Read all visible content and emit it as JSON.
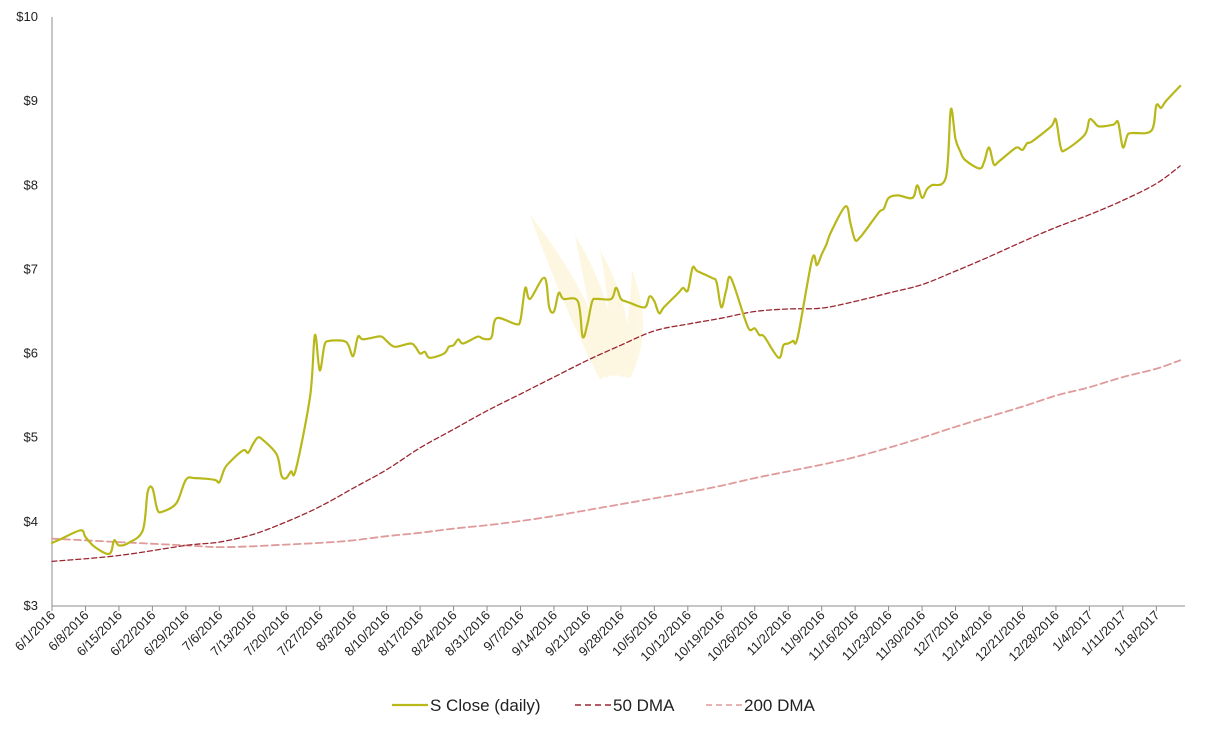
{
  "chart_data": {
    "type": "line",
    "title": "",
    "xlabel": "",
    "ylabel": "",
    "ylim": [
      3,
      10
    ],
    "yticks": [
      3,
      4,
      5,
      6,
      7,
      8,
      9,
      10
    ],
    "ytick_labels": [
      "$3",
      "$4",
      "$5",
      "$6",
      "$7",
      "$8",
      "$9",
      "$10"
    ],
    "x_start": "2016-06-01",
    "x_end": "2017-01-24",
    "xtick_labels": [
      "6/1/2016",
      "6/8/2016",
      "6/15/2016",
      "6/22/2016",
      "6/29/2016",
      "7/6/2016",
      "7/13/2016",
      "7/20/2016",
      "7/27/2016",
      "8/3/2016",
      "8/10/2016",
      "8/17/2016",
      "8/24/2016",
      "8/31/2016",
      "9/7/2016",
      "9/14/2016",
      "9/21/2016",
      "9/28/2016",
      "10/5/2016",
      "10/12/2016",
      "10/19/2016",
      "10/26/2016",
      "11/2/2016",
      "11/9/2016",
      "11/16/2016",
      "11/23/2016",
      "11/30/2016",
      "12/7/2016",
      "12/14/2016",
      "12/21/2016",
      "12/28/2016",
      "1/4/2017",
      "1/11/2017",
      "1/18/2017"
    ],
    "legend_position": "bottom",
    "grid": false,
    "series": [
      {
        "name": "S Close (daily)",
        "color": "#b8b81a",
        "style": "solid",
        "points": [
          [
            "2016-06-01",
            3.75
          ],
          [
            "2016-06-03",
            3.8
          ],
          [
            "2016-06-07",
            3.9
          ],
          [
            "2016-06-08",
            3.82
          ],
          [
            "2016-06-10",
            3.7
          ],
          [
            "2016-06-13",
            3.62
          ],
          [
            "2016-06-14",
            3.78
          ],
          [
            "2016-06-15",
            3.72
          ],
          [
            "2016-06-17",
            3.75
          ],
          [
            "2016-06-20",
            3.9
          ],
          [
            "2016-06-21",
            4.35
          ],
          [
            "2016-06-22",
            4.4
          ],
          [
            "2016-06-23",
            4.15
          ],
          [
            "2016-06-24",
            4.12
          ],
          [
            "2016-06-27",
            4.22
          ],
          [
            "2016-06-29",
            4.5
          ],
          [
            "2016-07-01",
            4.52
          ],
          [
            "2016-07-05",
            4.5
          ],
          [
            "2016-07-06",
            4.47
          ],
          [
            "2016-07-07",
            4.62
          ],
          [
            "2016-07-08",
            4.7
          ],
          [
            "2016-07-11",
            4.85
          ],
          [
            "2016-07-12",
            4.82
          ],
          [
            "2016-07-13",
            4.92
          ],
          [
            "2016-07-14",
            5.0
          ],
          [
            "2016-07-15",
            4.98
          ],
          [
            "2016-07-18",
            4.8
          ],
          [
            "2016-07-19",
            4.55
          ],
          [
            "2016-07-20",
            4.52
          ],
          [
            "2016-07-21",
            4.6
          ],
          [
            "2016-07-22",
            4.62
          ],
          [
            "2016-07-25",
            5.5
          ],
          [
            "2016-07-26",
            6.22
          ],
          [
            "2016-07-27",
            5.8
          ],
          [
            "2016-07-28",
            6.1
          ],
          [
            "2016-07-29",
            6.15
          ],
          [
            "2016-08-01",
            6.15
          ],
          [
            "2016-08-02",
            6.1
          ],
          [
            "2016-08-03",
            5.97
          ],
          [
            "2016-08-04",
            6.2
          ],
          [
            "2016-08-05",
            6.17
          ],
          [
            "2016-08-08",
            6.2
          ],
          [
            "2016-08-09",
            6.2
          ],
          [
            "2016-08-10",
            6.15
          ],
          [
            "2016-08-11",
            6.1
          ],
          [
            "2016-08-12",
            6.08
          ],
          [
            "2016-08-15",
            6.12
          ],
          [
            "2016-08-16",
            6.08
          ],
          [
            "2016-08-17",
            6.0
          ],
          [
            "2016-08-18",
            6.02
          ],
          [
            "2016-08-19",
            5.95
          ],
          [
            "2016-08-22",
            6.0
          ],
          [
            "2016-08-23",
            6.08
          ],
          [
            "2016-08-24",
            6.1
          ],
          [
            "2016-08-25",
            6.17
          ],
          [
            "2016-08-26",
            6.12
          ],
          [
            "2016-08-29",
            6.2
          ],
          [
            "2016-08-30",
            6.18
          ],
          [
            "2016-08-31",
            6.17
          ],
          [
            "2016-09-01",
            6.2
          ],
          [
            "2016-09-02",
            6.42
          ],
          [
            "2016-09-06",
            6.35
          ],
          [
            "2016-09-07",
            6.4
          ],
          [
            "2016-09-08",
            6.78
          ],
          [
            "2016-09-09",
            6.65
          ],
          [
            "2016-09-12",
            6.9
          ],
          [
            "2016-09-13",
            6.55
          ],
          [
            "2016-09-14",
            6.5
          ],
          [
            "2016-09-15",
            6.72
          ],
          [
            "2016-09-16",
            6.65
          ],
          [
            "2016-09-19",
            6.62
          ],
          [
            "2016-09-20",
            6.2
          ],
          [
            "2016-09-21",
            6.35
          ],
          [
            "2016-09-22",
            6.62
          ],
          [
            "2016-09-23",
            6.65
          ],
          [
            "2016-09-26",
            6.65
          ],
          [
            "2016-09-27",
            6.78
          ],
          [
            "2016-09-28",
            6.65
          ],
          [
            "2016-09-29",
            6.62
          ],
          [
            "2016-09-30",
            6.6
          ],
          [
            "2016-10-03",
            6.55
          ],
          [
            "2016-10-04",
            6.68
          ],
          [
            "2016-10-05",
            6.62
          ],
          [
            "2016-10-06",
            6.48
          ],
          [
            "2016-10-07",
            6.55
          ],
          [
            "2016-10-10",
            6.72
          ],
          [
            "2016-10-11",
            6.78
          ],
          [
            "2016-10-12",
            6.75
          ],
          [
            "2016-10-13",
            7.02
          ],
          [
            "2016-10-14",
            6.98
          ],
          [
            "2016-10-17",
            6.9
          ],
          [
            "2016-10-18",
            6.85
          ],
          [
            "2016-10-19",
            6.55
          ],
          [
            "2016-10-20",
            6.75
          ],
          [
            "2016-10-21",
            6.9
          ],
          [
            "2016-10-24",
            6.4
          ],
          [
            "2016-10-25",
            6.28
          ],
          [
            "2016-10-26",
            6.3
          ],
          [
            "2016-10-27",
            6.22
          ],
          [
            "2016-10-28",
            6.2
          ],
          [
            "2016-10-31",
            5.95
          ],
          [
            "2016-11-01",
            6.1
          ],
          [
            "2016-11-02",
            6.12
          ],
          [
            "2016-11-03",
            6.15
          ],
          [
            "2016-11-04",
            6.2
          ],
          [
            "2016-11-07",
            7.12
          ],
          [
            "2016-11-08",
            7.05
          ],
          [
            "2016-11-09",
            7.18
          ],
          [
            "2016-11-10",
            7.3
          ],
          [
            "2016-11-11",
            7.45
          ],
          [
            "2016-11-14",
            7.75
          ],
          [
            "2016-11-15",
            7.55
          ],
          [
            "2016-11-16",
            7.35
          ],
          [
            "2016-11-17",
            7.38
          ],
          [
            "2016-11-18",
            7.45
          ],
          [
            "2016-11-21",
            7.68
          ],
          [
            "2016-11-22",
            7.72
          ],
          [
            "2016-11-23",
            7.85
          ],
          [
            "2016-11-25",
            7.88
          ],
          [
            "2016-11-28",
            7.85
          ],
          [
            "2016-11-29",
            8.0
          ],
          [
            "2016-11-30",
            7.85
          ],
          [
            "2016-12-01",
            7.95
          ],
          [
            "2016-12-02",
            8.0
          ],
          [
            "2016-12-05",
            8.1
          ],
          [
            "2016-12-06",
            8.9
          ],
          [
            "2016-12-07",
            8.55
          ],
          [
            "2016-12-08",
            8.4
          ],
          [
            "2016-12-09",
            8.3
          ],
          [
            "2016-12-12",
            8.2
          ],
          [
            "2016-12-13",
            8.28
          ],
          [
            "2016-12-14",
            8.45
          ],
          [
            "2016-12-15",
            8.25
          ],
          [
            "2016-12-16",
            8.28
          ],
          [
            "2016-12-19",
            8.42
          ],
          [
            "2016-12-20",
            8.45
          ],
          [
            "2016-12-21",
            8.42
          ],
          [
            "2016-12-22",
            8.5
          ],
          [
            "2016-12-23",
            8.52
          ],
          [
            "2016-12-27",
            8.7
          ],
          [
            "2016-12-28",
            8.78
          ],
          [
            "2016-12-29",
            8.45
          ],
          [
            "2016-12-30",
            8.42
          ],
          [
            "2017-01-03",
            8.6
          ],
          [
            "2017-01-04",
            8.78
          ],
          [
            "2017-01-05",
            8.75
          ],
          [
            "2017-01-06",
            8.7
          ],
          [
            "2017-01-09",
            8.72
          ],
          [
            "2017-01-10",
            8.75
          ],
          [
            "2017-01-11",
            8.45
          ],
          [
            "2017-01-12",
            8.6
          ],
          [
            "2017-01-13",
            8.62
          ],
          [
            "2017-01-17",
            8.65
          ],
          [
            "2017-01-18",
            8.95
          ],
          [
            "2017-01-19",
            8.92
          ],
          [
            "2017-01-20",
            9.0
          ],
          [
            "2017-01-23",
            9.18
          ]
        ]
      },
      {
        "name": "50 DMA",
        "color": "#9b2630",
        "style": "dashed",
        "points": [
          [
            "2016-06-01",
            3.53
          ],
          [
            "2016-06-15",
            3.6
          ],
          [
            "2016-06-29",
            3.72
          ],
          [
            "2016-07-06",
            3.76
          ],
          [
            "2016-07-13",
            3.85
          ],
          [
            "2016-07-20",
            4.0
          ],
          [
            "2016-07-27",
            4.18
          ],
          [
            "2016-08-03",
            4.4
          ],
          [
            "2016-08-10",
            4.62
          ],
          [
            "2016-08-17",
            4.88
          ],
          [
            "2016-08-24",
            5.1
          ],
          [
            "2016-08-31",
            5.32
          ],
          [
            "2016-09-07",
            5.52
          ],
          [
            "2016-09-14",
            5.72
          ],
          [
            "2016-09-21",
            5.92
          ],
          [
            "2016-09-28",
            6.1
          ],
          [
            "2016-10-05",
            6.27
          ],
          [
            "2016-10-12",
            6.35
          ],
          [
            "2016-10-19",
            6.42
          ],
          [
            "2016-10-26",
            6.5
          ],
          [
            "2016-11-02",
            6.53
          ],
          [
            "2016-11-09",
            6.54
          ],
          [
            "2016-11-16",
            6.62
          ],
          [
            "2016-11-23",
            6.72
          ],
          [
            "2016-11-30",
            6.82
          ],
          [
            "2016-12-07",
            6.98
          ],
          [
            "2016-12-14",
            7.15
          ],
          [
            "2016-12-21",
            7.33
          ],
          [
            "2016-12-28",
            7.5
          ],
          [
            "2017-01-04",
            7.65
          ],
          [
            "2017-01-11",
            7.82
          ],
          [
            "2017-01-18",
            8.02
          ],
          [
            "2017-01-23",
            8.23
          ]
        ]
      },
      {
        "name": "200 DMA",
        "color": "#e09a9a",
        "style": "dashed",
        "points": [
          [
            "2016-06-01",
            3.8
          ],
          [
            "2016-06-15",
            3.76
          ],
          [
            "2016-06-29",
            3.72
          ],
          [
            "2016-07-06",
            3.7
          ],
          [
            "2016-07-13",
            3.71
          ],
          [
            "2016-07-20",
            3.73
          ],
          [
            "2016-07-27",
            3.75
          ],
          [
            "2016-08-03",
            3.78
          ],
          [
            "2016-08-10",
            3.83
          ],
          [
            "2016-08-17",
            3.87
          ],
          [
            "2016-08-24",
            3.92
          ],
          [
            "2016-08-31",
            3.96
          ],
          [
            "2016-09-07",
            4.01
          ],
          [
            "2016-09-14",
            4.07
          ],
          [
            "2016-09-21",
            4.14
          ],
          [
            "2016-09-28",
            4.21
          ],
          [
            "2016-10-05",
            4.28
          ],
          [
            "2016-10-12",
            4.35
          ],
          [
            "2016-10-19",
            4.43
          ],
          [
            "2016-10-26",
            4.52
          ],
          [
            "2016-11-02",
            4.6
          ],
          [
            "2016-11-09",
            4.68
          ],
          [
            "2016-11-16",
            4.77
          ],
          [
            "2016-11-23",
            4.88
          ],
          [
            "2016-11-30",
            5.0
          ],
          [
            "2016-12-07",
            5.13
          ],
          [
            "2016-12-14",
            5.25
          ],
          [
            "2016-12-21",
            5.37
          ],
          [
            "2016-12-28",
            5.5
          ],
          [
            "2017-01-04",
            5.6
          ],
          [
            "2017-01-11",
            5.72
          ],
          [
            "2017-01-18",
            5.82
          ],
          [
            "2017-01-23",
            5.92
          ]
        ]
      }
    ]
  }
}
